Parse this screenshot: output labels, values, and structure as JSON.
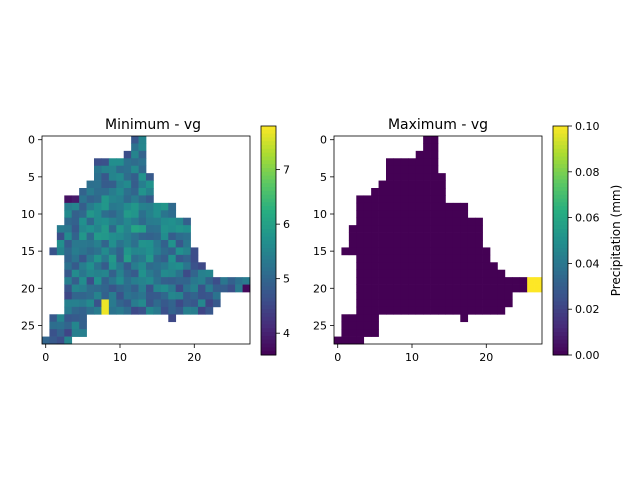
{
  "chart_data": [
    {
      "type": "heatmap",
      "title": "Minimum - vg",
      "xlabel": "",
      "ylabel": "",
      "xlim": [
        -0.5,
        27.5
      ],
      "ylim": [
        27.5,
        -0.5
      ],
      "x_ticks": [
        0,
        10,
        20
      ],
      "y_ticks": [
        0,
        5,
        10,
        15,
        20,
        25
      ],
      "colormap": "viridis",
      "vmin": 3.6,
      "vmax": 7.8,
      "colorbar": {
        "ticks": [
          4,
          5,
          6,
          7
        ],
        "label": ""
      },
      "mask_rows": [
        [
          [
            12,
            13
          ]
        ],
        [
          [
            12,
            13
          ]
        ],
        [
          [
            11,
            13
          ]
        ],
        [
          [
            7,
            13
          ]
        ],
        [
          [
            7,
            13
          ]
        ],
        [
          [
            7,
            14
          ]
        ],
        [
          [
            6,
            14
          ]
        ],
        [
          [
            5,
            14
          ]
        ],
        [
          [
            3,
            14
          ]
        ],
        [
          [
            3,
            17
          ]
        ],
        [
          [
            3,
            17
          ]
        ],
        [
          [
            3,
            19
          ]
        ],
        [
          [
            2,
            19
          ]
        ],
        [
          [
            2,
            19
          ]
        ],
        [
          [
            2,
            19
          ]
        ],
        [
          [
            1,
            1
          ],
          [
            2,
            20
          ]
        ],
        [
          [
            3,
            20
          ]
        ],
        [
          [
            3,
            21
          ]
        ],
        [
          [
            3,
            22
          ]
        ],
        [
          [
            3,
            27
          ]
        ],
        [
          [
            3,
            27
          ]
        ],
        [
          [
            3,
            23
          ]
        ],
        [
          [
            3,
            23
          ]
        ],
        [
          [
            3,
            16
          ],
          [
            17,
            22
          ]
        ],
        [
          [
            1,
            5
          ],
          [
            17,
            17
          ]
        ],
        [
          [
            1,
            5
          ]
        ],
        [
          [
            1,
            5
          ]
        ],
        [
          [
            0,
            3
          ]
        ]
      ],
      "base_pattern": "noise",
      "seed": 7,
      "value_overrides": [
        {
          "row": 22,
          "col": 8,
          "value": 7.7
        },
        {
          "row": 23,
          "col": 8,
          "value": 7.7
        },
        {
          "row": 20,
          "col": 27,
          "value": 3.7
        },
        {
          "row": 7,
          "col": 3,
          "value": 3.8
        },
        {
          "row": 8,
          "col": 3,
          "value": 3.8
        },
        {
          "row": 8,
          "col": 4,
          "value": 3.9
        }
      ]
    },
    {
      "type": "heatmap",
      "title": "Maximum - vg",
      "xlabel": "",
      "ylabel": "",
      "xlim": [
        -0.5,
        27.5
      ],
      "ylim": [
        27.5,
        -0.5
      ],
      "x_ticks": [
        0,
        10,
        20
      ],
      "y_ticks": [
        0,
        5,
        10,
        15,
        20,
        25
      ],
      "colormap": "viridis",
      "vmin": 0.0,
      "vmax": 0.1,
      "colorbar": {
        "ticks": [
          "0.00",
          "0.02",
          "0.04",
          "0.06",
          "0.08",
          "0.10"
        ],
        "label": "Precipitation (mm)"
      },
      "mask_rows": [
        [
          [
            12,
            13
          ]
        ],
        [
          [
            12,
            13
          ]
        ],
        [
          [
            11,
            13
          ]
        ],
        [
          [
            7,
            13
          ]
        ],
        [
          [
            7,
            13
          ]
        ],
        [
          [
            7,
            14
          ]
        ],
        [
          [
            6,
            14
          ]
        ],
        [
          [
            5,
            14
          ]
        ],
        [
          [
            3,
            14
          ]
        ],
        [
          [
            3,
            17
          ]
        ],
        [
          [
            3,
            17
          ]
        ],
        [
          [
            3,
            19
          ]
        ],
        [
          [
            2,
            19
          ]
        ],
        [
          [
            2,
            19
          ]
        ],
        [
          [
            2,
            19
          ]
        ],
        [
          [
            1,
            1
          ],
          [
            2,
            20
          ]
        ],
        [
          [
            3,
            20
          ]
        ],
        [
          [
            3,
            21
          ]
        ],
        [
          [
            3,
            22
          ]
        ],
        [
          [
            3,
            27
          ]
        ],
        [
          [
            3,
            27
          ]
        ],
        [
          [
            3,
            23
          ]
        ],
        [
          [
            3,
            23
          ]
        ],
        [
          [
            3,
            16
          ],
          [
            17,
            22
          ]
        ],
        [
          [
            1,
            5
          ],
          [
            17,
            17
          ]
        ],
        [
          [
            1,
            5
          ]
        ],
        [
          [
            1,
            5
          ]
        ],
        [
          [
            0,
            3
          ]
        ]
      ],
      "base_value": 0.0,
      "value_overrides": [
        {
          "row": 19,
          "col": 26,
          "value": 0.1
        },
        {
          "row": 19,
          "col": 27,
          "value": 0.1
        },
        {
          "row": 20,
          "col": 26,
          "value": 0.1
        },
        {
          "row": 20,
          "col": 27,
          "value": 0.1
        }
      ]
    }
  ]
}
